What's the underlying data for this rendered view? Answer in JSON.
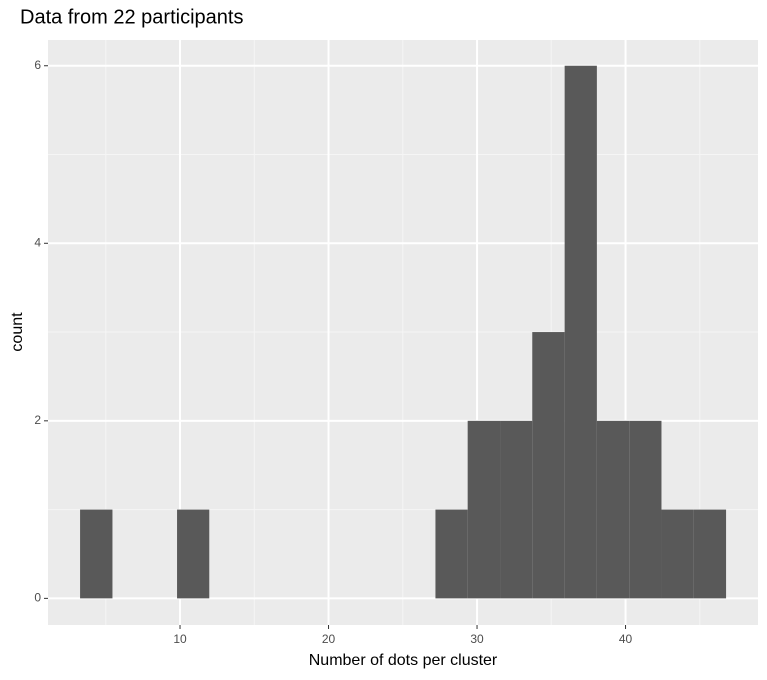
{
  "chart_data": {
    "type": "histogram",
    "title": "Data from 22 participants",
    "xlabel": "Number of dots per cluster",
    "ylabel": "count",
    "bins": [
      3.27,
      5.45,
      7.62,
      9.8,
      11.97,
      14.15,
      16.32,
      18.5,
      20.67,
      22.85,
      25.02,
      27.2,
      29.37,
      31.55,
      33.72,
      35.9,
      38.07,
      40.25,
      42.42,
      44.6,
      46.77
    ],
    "values": [
      1,
      0,
      0,
      1,
      0,
      0,
      0,
      0,
      0,
      0,
      0,
      1,
      2,
      2,
      3,
      6,
      2,
      2,
      1,
      1
    ],
    "color": "#595959",
    "xlim": [
      1.11,
      48.92
    ],
    "ylim": [
      -0.3,
      6.29
    ],
    "xticks": [
      10,
      20,
      30,
      40
    ],
    "yticks": [
      0,
      2,
      4,
      6
    ],
    "grid": true
  }
}
